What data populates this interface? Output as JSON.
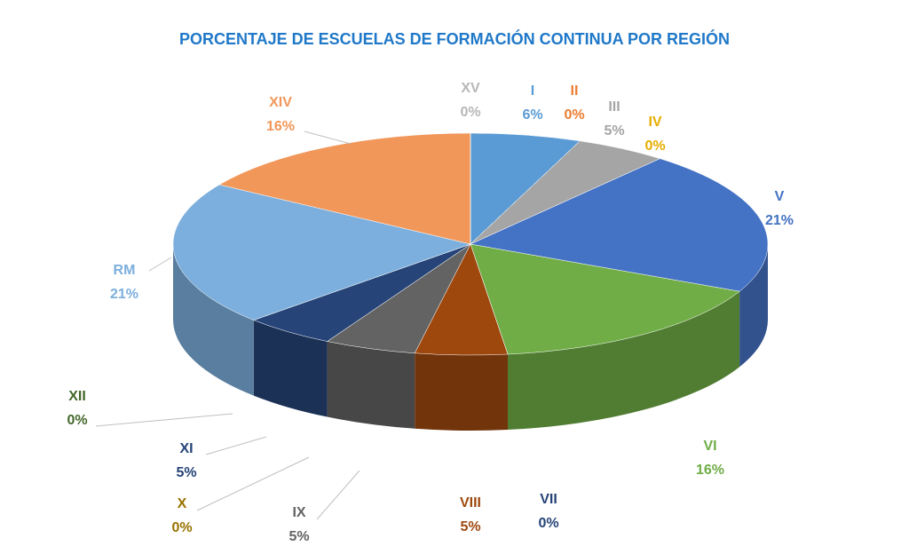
{
  "chart_data": {
    "type": "pie",
    "title": "PORCENTAJE DE ESCUELAS DE FORMACIÓN CONTINUA POR REGIÓN",
    "categories": [
      "I",
      "II",
      "III",
      "IV",
      "V",
      "VI",
      "VII",
      "VIII",
      "IX",
      "X",
      "XI",
      "XII",
      "RM",
      "XIV",
      "XV"
    ],
    "values": [
      6,
      0,
      5,
      0,
      21,
      16,
      0,
      5,
      5,
      0,
      5,
      0,
      21,
      16,
      0
    ],
    "value_labels": [
      "6%",
      "0%",
      "5%",
      "0%",
      "21%",
      "16%",
      "0%",
      "5%",
      "5%",
      "0%",
      "5%",
      "0%",
      "21%",
      "16%",
      "0%"
    ],
    "colors": [
      "#5b9bd5",
      "#ed7d31",
      "#a5a5a5",
      "#ffc000",
      "#4472c4",
      "#70ad47",
      "#264478",
      "#9e480e",
      "#636363",
      "#997300",
      "#264478",
      "#43682b",
      "#7cafdd",
      "#f1975a",
      "#b7b7b7"
    ]
  }
}
